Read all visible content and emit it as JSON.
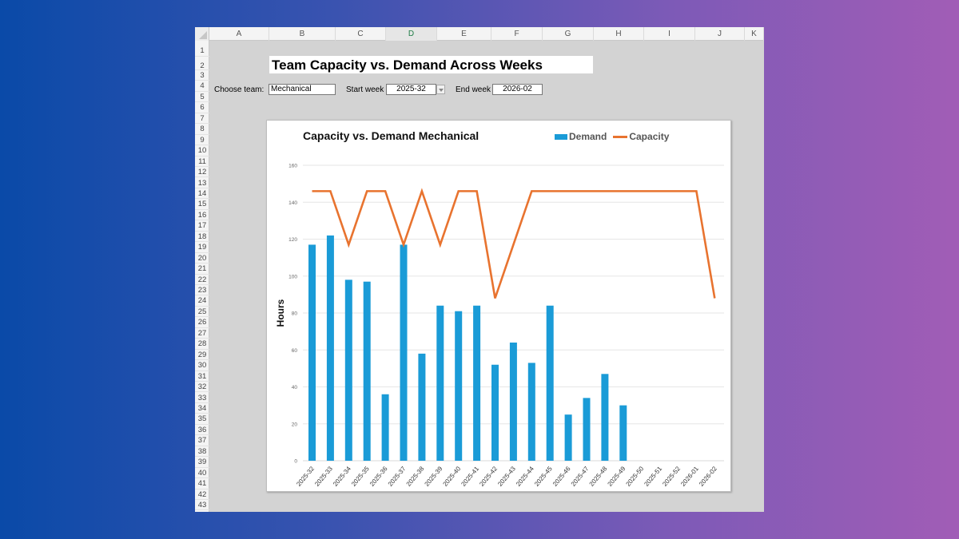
{
  "spreadsheet": {
    "columns": [
      "A",
      "B",
      "C",
      "D",
      "E",
      "F",
      "G",
      "H",
      "I",
      "J",
      "K"
    ],
    "active_column": "D",
    "rows": [
      "1",
      "2",
      "3",
      "4",
      "5",
      "6",
      "7",
      "8",
      "9",
      "10",
      "11",
      "12",
      "13",
      "14",
      "15",
      "16",
      "17",
      "18",
      "19",
      "20",
      "21",
      "22",
      "23",
      "24",
      "25",
      "26",
      "27",
      "28",
      "29",
      "30",
      "31",
      "32",
      "33",
      "34",
      "35",
      "36",
      "37",
      "38",
      "39",
      "40",
      "41",
      "42",
      "43"
    ]
  },
  "sheet_title": "Team Capacity vs. Demand Across Weeks",
  "controls": {
    "team_label": "Choose team:",
    "team_value": "Mechanical",
    "start_label": "Start week",
    "start_value": "2025-32",
    "end_label": "End week",
    "end_value": "2026-02"
  },
  "colors": {
    "demand": "#1a9bd7",
    "capacity": "#e8732f"
  },
  "chart_data": {
    "type": "bar",
    "title": "Capacity vs. Demand Mechanical",
    "xlabel": "",
    "ylabel": "Hours",
    "ylim": [
      0,
      160
    ],
    "yticks": [
      0,
      20,
      40,
      60,
      80,
      100,
      120,
      140,
      160
    ],
    "grid": true,
    "legend_position": "top-right",
    "categories": [
      "2025-32",
      "2025-33",
      "2025-34",
      "2025-35",
      "2025-36",
      "2025-37",
      "2025-38",
      "2025-39",
      "2025-40",
      "2025-41",
      "2025-42",
      "2025-43",
      "2025-44",
      "2025-45",
      "2025-46",
      "2025-47",
      "2025-48",
      "2025-49",
      "2025-50",
      "2025-51",
      "2025-52",
      "2026-01",
      "2026-02"
    ],
    "series": [
      {
        "name": "Demand",
        "type": "bar",
        "values": [
          117,
          122,
          98,
          97,
          36,
          117,
          58,
          84,
          81,
          84,
          52,
          64,
          53,
          84,
          25,
          34,
          47,
          30,
          null,
          null,
          null,
          null,
          null
        ]
      },
      {
        "name": "Capacity",
        "type": "line",
        "values": [
          146,
          146,
          117,
          146,
          146,
          117,
          146,
          117,
          146,
          146,
          88,
          117,
          146,
          146,
          146,
          146,
          146,
          146,
          146,
          146,
          146,
          146,
          88
        ]
      }
    ]
  }
}
